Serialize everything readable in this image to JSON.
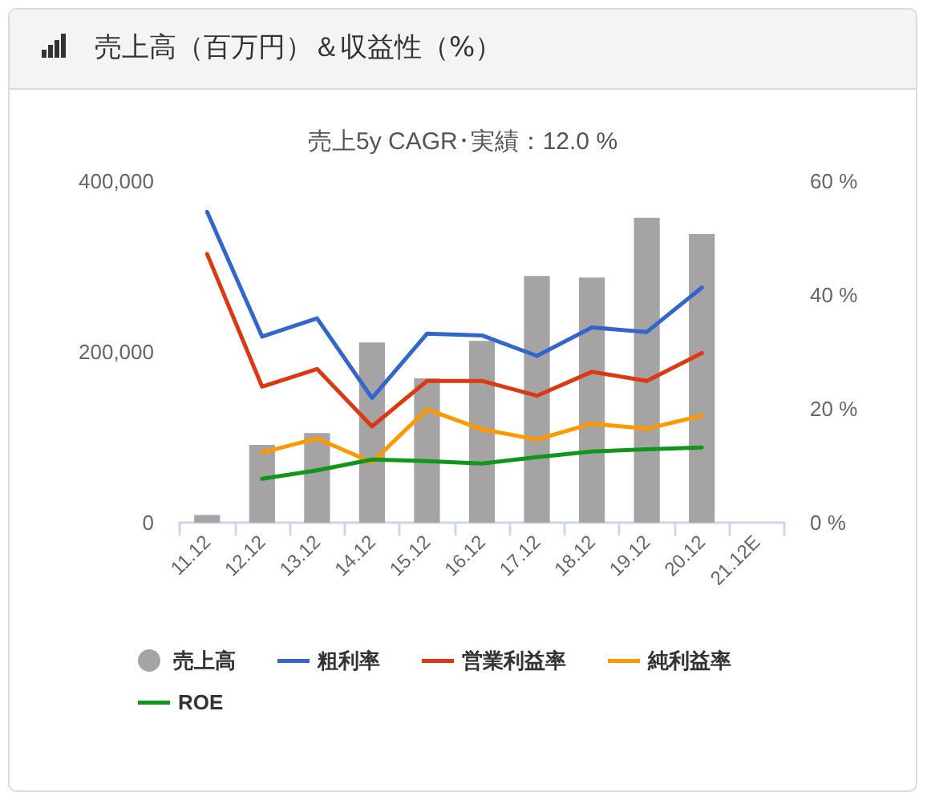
{
  "chart_data": {
    "type": "bar",
    "title": "売上高（百万円）＆収益性（%）",
    "subtitle": "売上5y CAGR･実績：12.0 %",
    "categories": [
      "11.12",
      "12.12",
      "13.12",
      "14.12",
      "15.12",
      "16.12",
      "17.12",
      "18.12",
      "19.12",
      "20.12",
      "21.12E"
    ],
    "series": [
      {
        "name": "売上高",
        "color": "#a5a3a3",
        "values": [
          9000,
          91000,
          105000,
          211000,
          169000,
          213000,
          289000,
          287000,
          357000,
          338000,
          null
        ]
      },
      {
        "name": "粗利率",
        "type": "line",
        "axis": "y2",
        "color": "#3366cc",
        "values": [
          54.6,
          32.7,
          35.9,
          21.9,
          33.2,
          32.9,
          29.3,
          34.3,
          33.5,
          41.3,
          null
        ]
      },
      {
        "name": "営業利益率",
        "type": "line",
        "axis": "y2",
        "color": "#dc3912",
        "values": [
          47.2,
          23.9,
          27.0,
          16.9,
          24.9,
          24.9,
          22.3,
          26.5,
          24.9,
          29.8,
          null
        ]
      },
      {
        "name": "純利益率",
        "type": "line",
        "axis": "y2",
        "color": "#ff9900",
        "values": [
          null,
          12.3,
          14.8,
          10.6,
          19.9,
          16.4,
          14.6,
          17.4,
          16.5,
          18.8,
          null
        ]
      },
      {
        "name": "ROE",
        "type": "line",
        "axis": "y2",
        "color": "#109618",
        "values": [
          null,
          7.7,
          9.2,
          11.1,
          10.8,
          10.4,
          11.5,
          12.5,
          12.9,
          13.2,
          null
        ]
      }
    ],
    "ylim": [
      0,
      400000
    ],
    "yticks": [
      0,
      {
        "value": 200000,
        "label": "200,000"
      },
      {
        "value": 400000,
        "label": "400,000"
      }
    ],
    "y2lim": [
      0,
      60
    ],
    "y2ticks": [
      {
        "value": 0,
        "label": "0 %"
      },
      {
        "value": 20,
        "label": "20 %"
      },
      {
        "value": 40,
        "label": "40 %"
      },
      {
        "value": 60,
        "label": "60 %"
      }
    ],
    "legend": "bottom",
    "marker": "none",
    "line_style": "solid"
  }
}
